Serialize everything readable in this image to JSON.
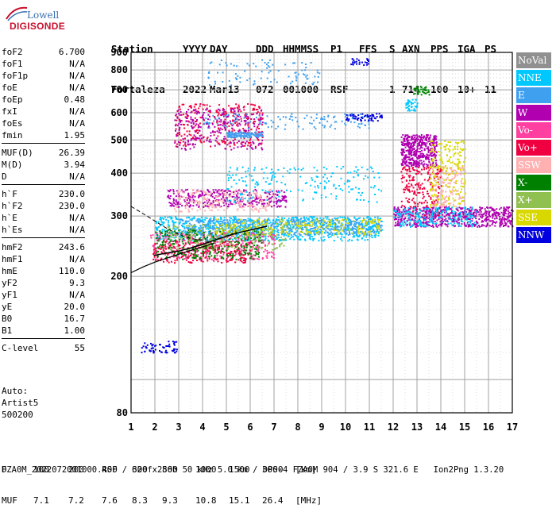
{
  "logo": {
    "brand": "Lowell",
    "product": "DIGISONDE"
  },
  "header": {
    "labels": [
      "Station",
      "YYYY",
      "DAY",
      "DDD",
      "HHMMSS",
      "P1",
      "FFS",
      "S",
      "AXN",
      "PPS",
      "IGA",
      "PS"
    ],
    "values": [
      "Fortaleza",
      "2022",
      "Mar13",
      "072",
      "001000",
      "RSF",
      "",
      "1",
      "714",
      "100",
      "10+",
      "11"
    ]
  },
  "params": {
    "groups": [
      [
        {
          "name": "foF2",
          "value": "6.700"
        },
        {
          "name": "foF1",
          "value": "N/A"
        },
        {
          "name": "foF1p",
          "value": "N/A"
        },
        {
          "name": "foE",
          "value": "N/A"
        },
        {
          "name": "foEp",
          "value": "0.48"
        },
        {
          "name": "fxI",
          "value": "N/A"
        },
        {
          "name": "foEs",
          "value": "N/A"
        },
        {
          "name": "fmin",
          "value": "1.95"
        }
      ],
      [
        {
          "name": "MUF(D)",
          "value": "26.39"
        },
        {
          "name": "M(D)",
          "value": "3.94"
        },
        {
          "name": "D",
          "value": "N/A"
        }
      ],
      [
        {
          "name": "h`F",
          "value": "230.0"
        },
        {
          "name": "h`F2",
          "value": "230.0"
        },
        {
          "name": "h`E",
          "value": "N/A"
        },
        {
          "name": "h`Es",
          "value": "N/A"
        }
      ],
      [
        {
          "name": "hmF2",
          "value": "243.6"
        },
        {
          "name": "hmF1",
          "value": "N/A"
        },
        {
          "name": "hmE",
          "value": "110.0"
        },
        {
          "name": "yF2",
          "value": "9.3"
        },
        {
          "name": "yF1",
          "value": "N/A"
        },
        {
          "name": "yE",
          "value": "20.0"
        },
        {
          "name": "B0",
          "value": "16.7"
        },
        {
          "name": "B1",
          "value": "1.00"
        }
      ],
      [
        {
          "name": "C-level",
          "value": "55"
        }
      ]
    ],
    "config": [
      "Auto:",
      "Artist5",
      "500200"
    ]
  },
  "legend": [
    {
      "label": "NoVal",
      "color": "#909090"
    },
    {
      "label": "NNE",
      "color": "#00c8ff"
    },
    {
      "label": "E",
      "color": "#40a0f0"
    },
    {
      "label": "W",
      "color": "#b000b0"
    },
    {
      "label": "Vo-",
      "color": "#ff40a0"
    },
    {
      "label": "Vo+",
      "color": "#f00040"
    },
    {
      "label": "SSW",
      "color": "#ffb0b0"
    },
    {
      "label": "X-",
      "color": "#008000"
    },
    {
      "label": "X+",
      "color": "#90c050"
    },
    {
      "label": "SSE",
      "color": "#d8d800"
    },
    {
      "label": "NNW",
      "color": "#0000e0"
    }
  ],
  "footer": {
    "d_label": "D",
    "d_values": [
      "100",
      "200",
      "400",
      "600",
      "800",
      "1000",
      "1500",
      "3000",
      "[km]"
    ],
    "muf_label": "MUF",
    "muf_values": [
      "7.1",
      "7.2",
      "7.6",
      "8.3",
      "9.3",
      "10.8",
      "15.1",
      "26.4",
      "[MHz]"
    ],
    "file_info": "FZA0M_2022072001000.RSF / 320fx256h 50 kHz 5.0 km / DPS-4 FZA0M 904 / 3.9 S 321.6 E   Ion2Png 1.3.20"
  },
  "chart_data": {
    "type": "scatter",
    "title": "",
    "xlabel": "",
    "ylabel": "",
    "xlim": [
      1,
      17
    ],
    "ylim": [
      80,
      900
    ],
    "y_scale": "log",
    "x_ticks": [
      1,
      2,
      3,
      4,
      5,
      6,
      7,
      8,
      9,
      10,
      11,
      12,
      13,
      14,
      15,
      16,
      17
    ],
    "y_ticks": [
      80,
      100,
      200,
      300,
      400,
      500,
      600,
      700,
      800,
      900
    ],
    "y_tick_labels": [
      80,
      200,
      300,
      400,
      500,
      600,
      700,
      800,
      900
    ],
    "grid": true,
    "legend_placement": "right",
    "traces": [
      {
        "color": "#0000e0",
        "x_range": [
          1.4,
          2.9
        ],
        "y_range": [
          120,
          130
        ],
        "density": 60
      },
      {
        "color": "#00c8ff",
        "x_range": [
          2.0,
          11.5
        ],
        "y_range": [
          255,
          300
        ],
        "density": 900
      },
      {
        "color": "#40a0f0",
        "x_range": [
          3.0,
          11.5
        ],
        "y_range": [
          265,
          295
        ],
        "density": 500
      },
      {
        "color": "#ff40a0",
        "x_range": [
          1.8,
          7.0
        ],
        "y_range": [
          225,
          270
        ],
        "density": 400
      },
      {
        "color": "#f00040",
        "x_range": [
          1.9,
          6.0
        ],
        "y_range": [
          220,
          255
        ],
        "density": 250
      },
      {
        "color": "#008000",
        "x_range": [
          2.0,
          6.5
        ],
        "y_range": [
          225,
          275
        ],
        "density": 300
      },
      {
        "color": "#90c050",
        "x_range": [
          2.5,
          7.5
        ],
        "y_range": [
          240,
          285
        ],
        "density": 200
      },
      {
        "color": "#d8d800",
        "x_range": [
          4.5,
          11.5
        ],
        "y_range": [
          265,
          295
        ],
        "density": 250
      },
      {
        "color": "#b000b0",
        "x_range": [
          2.5,
          7.5
        ],
        "y_range": [
          320,
          360
        ],
        "density": 350
      },
      {
        "color": "#ffb0b0",
        "x_range": [
          2.8,
          7.0
        ],
        "y_range": [
          310,
          360
        ],
        "density": 200
      },
      {
        "color": "#00c8ff",
        "x_range": [
          5.0,
          11.5
        ],
        "y_range": [
          330,
          420
        ],
        "density": 200
      },
      {
        "color": "#f00040",
        "x_range": [
          2.8,
          6.5
        ],
        "y_range": [
          480,
          640
        ],
        "density": 300
      },
      {
        "color": "#b000b0",
        "x_range": [
          2.8,
          6.5
        ],
        "y_range": [
          470,
          620
        ],
        "density": 250
      },
      {
        "color": "#40a0f0",
        "x_range": [
          5.0,
          6.5
        ],
        "y_range": [
          510,
          530
        ],
        "density": 120
      },
      {
        "color": "#40a0f0",
        "x_range": [
          4.0,
          11.0
        ],
        "y_range": [
          540,
          600
        ],
        "density": 120
      },
      {
        "color": "#0000e0",
        "x_range": [
          10.0,
          11.5
        ],
        "y_range": [
          570,
          600
        ],
        "density": 60
      },
      {
        "color": "#40a0f0",
        "x_range": [
          4.0,
          9.0
        ],
        "y_range": [
          720,
          860
        ],
        "density": 90
      },
      {
        "color": "#b000b0",
        "x_range": [
          12.0,
          17.0
        ],
        "y_range": [
          280,
          320
        ],
        "density": 700
      },
      {
        "color": "#b000b0",
        "x_range": [
          12.3,
          13.8
        ],
        "y_range": [
          420,
          520
        ],
        "density": 450
      },
      {
        "color": "#f00040",
        "x_range": [
          12.3,
          14.0
        ],
        "y_range": [
          300,
          420
        ],
        "density": 200
      },
      {
        "color": "#ffb0b0",
        "x_range": [
          13.5,
          15.0
        ],
        "y_range": [
          320,
          420
        ],
        "density": 150
      },
      {
        "color": "#d8d800",
        "x_range": [
          13.5,
          15.0
        ],
        "y_range": [
          320,
          500
        ],
        "density": 200
      },
      {
        "color": "#00c8ff",
        "x_range": [
          12.0,
          15.5
        ],
        "y_range": [
          280,
          320
        ],
        "density": 200
      },
      {
        "color": "#008000",
        "x_range": [
          12.8,
          13.5
        ],
        "y_range": [
          680,
          720
        ],
        "density": 40
      },
      {
        "color": "#00c8ff",
        "x_range": [
          12.5,
          13.0
        ],
        "y_range": [
          610,
          660
        ],
        "density": 40
      },
      {
        "color": "#0000e0",
        "x_range": [
          10.2,
          11.0
        ],
        "y_range": [
          830,
          870
        ],
        "density": 25
      }
    ],
    "virtual_height_profile": {
      "color": "#000000",
      "points": [
        [
          1.95,
          230
        ],
        [
          2.5,
          234
        ],
        [
          3.0,
          237
        ],
        [
          3.5,
          242
        ],
        [
          4.0,
          248
        ],
        [
          4.5,
          255
        ],
        [
          5.0,
          262
        ],
        [
          5.5,
          268
        ],
        [
          6.0,
          273
        ],
        [
          6.7,
          280
        ]
      ]
    },
    "dashed_curve": {
      "color": "#000000",
      "points": [
        [
          1.0,
          320
        ],
        [
          1.5,
          305
        ],
        [
          2.0,
          290
        ],
        [
          2.5,
          276
        ],
        [
          3.0,
          265
        ],
        [
          3.5,
          258
        ],
        [
          4.0,
          255
        ]
      ]
    },
    "lower_curve": {
      "color": "#000000",
      "points": [
        [
          1.0,
          205
        ],
        [
          1.5,
          213
        ],
        [
          2.0,
          220
        ],
        [
          2.5,
          226
        ],
        [
          3.0,
          232
        ],
        [
          3.5,
          238
        ],
        [
          4.0,
          244
        ],
        [
          4.5,
          250
        ]
      ]
    }
  }
}
